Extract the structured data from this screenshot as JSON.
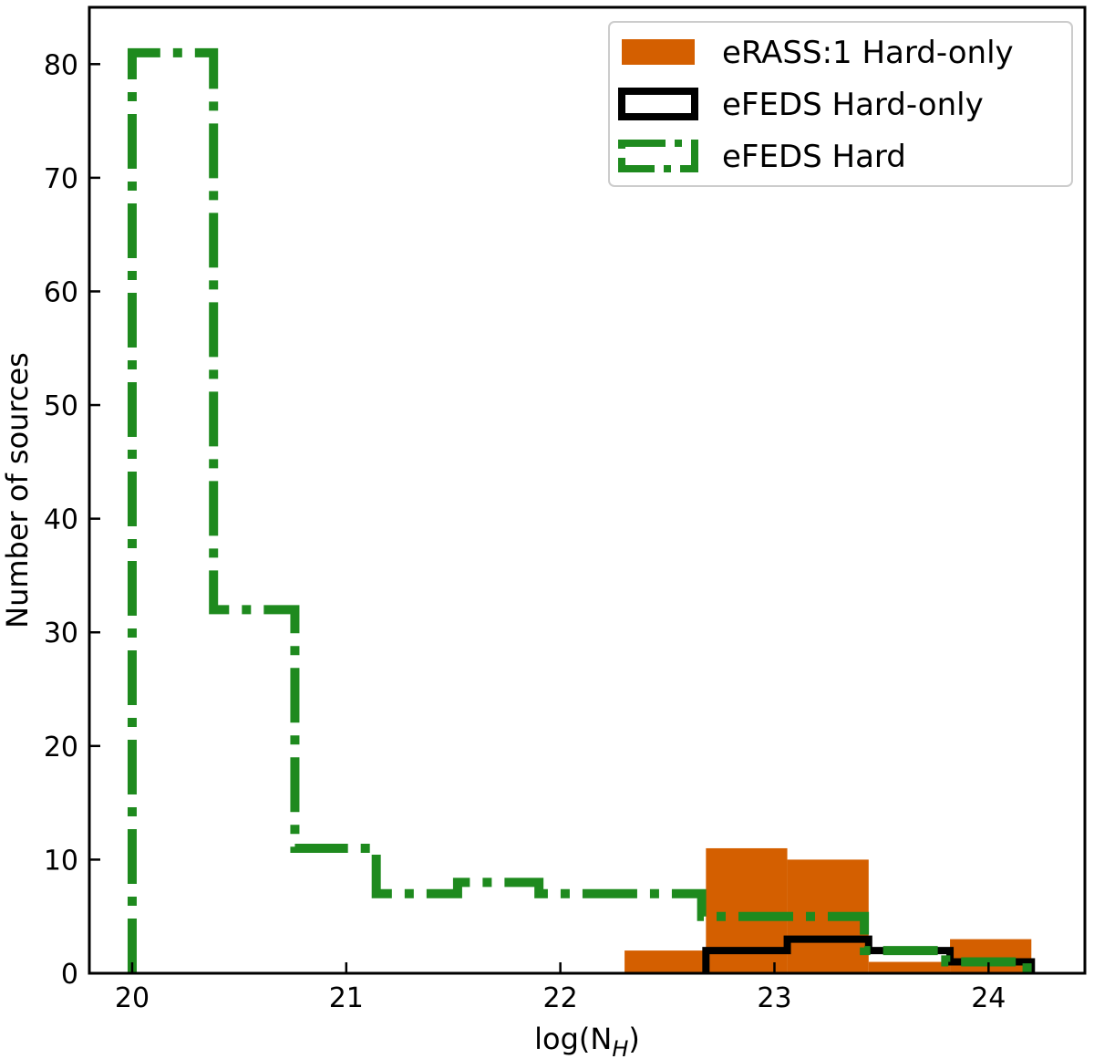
{
  "chart_data": {
    "type": "histogram",
    "xlabel": "log(N",
    "xlabel_sub": "H",
    "xlabel_close": ")",
    "ylabel": "Number of sources",
    "xlim": [
      19.8,
      24.45
    ],
    "ylim": [
      0,
      85
    ],
    "xticks": [
      20,
      21,
      22,
      23,
      24
    ],
    "yticks": [
      0,
      10,
      20,
      30,
      40,
      50,
      60,
      70,
      80
    ],
    "grid": false,
    "legend_position": "top-right",
    "series": [
      {
        "name": "eRASS:1 Hard-only",
        "style": "filled",
        "color": "#d45f00",
        "bin_edges": [
          22.3,
          22.68,
          23.06,
          23.44,
          23.82,
          24.2
        ],
        "counts": [
          2,
          11,
          10,
          1,
          3
        ]
      },
      {
        "name": "eFEDS Hard-only",
        "style": "solid-step",
        "color": "#000000",
        "bin_edges": [
          22.68,
          23.06,
          23.44,
          23.82,
          24.2
        ],
        "counts": [
          2,
          3,
          2,
          1
        ]
      },
      {
        "name": "eFEDS Hard",
        "style": "dashdot-step",
        "color": "#1e8a1e",
        "bin_edges": [
          20.0,
          20.38,
          20.76,
          21.14,
          21.52,
          21.9,
          22.28,
          22.66,
          23.04,
          23.42,
          23.8,
          24.18
        ],
        "counts": [
          81,
          32,
          11,
          7,
          8,
          7,
          7,
          5,
          5,
          2,
          1
        ]
      }
    ]
  }
}
